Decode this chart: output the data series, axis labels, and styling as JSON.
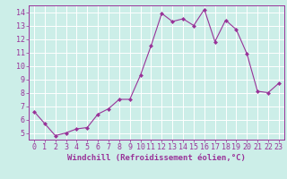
{
  "x": [
    0,
    1,
    2,
    3,
    4,
    5,
    6,
    7,
    8,
    9,
    10,
    11,
    12,
    13,
    14,
    15,
    16,
    17,
    18,
    19,
    20,
    21,
    22,
    23
  ],
  "y": [
    6.6,
    5.7,
    4.8,
    5.0,
    5.3,
    5.4,
    6.4,
    6.8,
    7.5,
    7.5,
    9.3,
    11.5,
    13.9,
    13.3,
    13.5,
    13.0,
    14.2,
    11.8,
    13.4,
    12.7,
    10.9,
    8.1,
    8.0,
    8.7
  ],
  "line_color": "#993399",
  "marker": "D",
  "marker_size": 2,
  "bg_color": "#cceee8",
  "grid_color": "#ffffff",
  "axis_color": "#993399",
  "xlabel": "Windchill (Refroidissement éolien,°C)",
  "xlabel_fontsize": 6.5,
  "tick_fontsize": 6,
  "ylim": [
    4.5,
    14.5
  ],
  "xlim": [
    -0.5,
    23.5
  ],
  "yticks": [
    5,
    6,
    7,
    8,
    9,
    10,
    11,
    12,
    13,
    14
  ],
  "xticks": [
    0,
    1,
    2,
    3,
    4,
    5,
    6,
    7,
    8,
    9,
    10,
    11,
    12,
    13,
    14,
    15,
    16,
    17,
    18,
    19,
    20,
    21,
    22,
    23
  ]
}
